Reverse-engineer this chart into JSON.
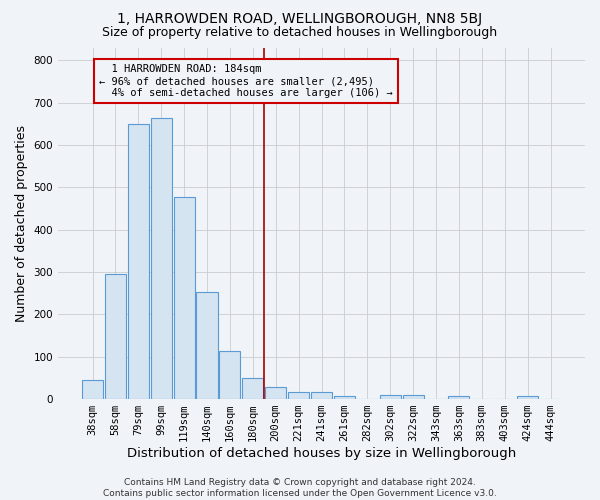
{
  "title": "1, HARROWDEN ROAD, WELLINGBOROUGH, NN8 5BJ",
  "subtitle": "Size of property relative to detached houses in Wellingborough",
  "xlabel": "Distribution of detached houses by size in Wellingborough",
  "ylabel": "Number of detached properties",
  "categories": [
    "38sqm",
    "58sqm",
    "79sqm",
    "99sqm",
    "119sqm",
    "140sqm",
    "160sqm",
    "180sqm",
    "200sqm",
    "221sqm",
    "241sqm",
    "261sqm",
    "282sqm",
    "302sqm",
    "322sqm",
    "343sqm",
    "363sqm",
    "383sqm",
    "403sqm",
    "424sqm",
    "444sqm"
  ],
  "values": [
    45,
    295,
    650,
    663,
    478,
    253,
    114,
    50,
    28,
    16,
    16,
    8,
    0,
    10,
    9,
    0,
    8,
    0,
    0,
    8,
    0
  ],
  "bar_color": "#d4e4f0",
  "bar_edge_color": "#5b9bd5",
  "vline_x": 7.5,
  "annotation_text": "  1 HARROWDEN ROAD: 184sqm\n← 96% of detached houses are smaller (2,495)\n  4% of semi-detached houses are larger (106) →",
  "vline_color": "#aa0000",
  "annotation_box_edge_color": "#cc0000",
  "ylim": [
    0,
    830
  ],
  "yticks": [
    0,
    100,
    200,
    300,
    400,
    500,
    600,
    700,
    800
  ],
  "footer": "Contains HM Land Registry data © Crown copyright and database right 2024.\nContains public sector information licensed under the Open Government Licence v3.0.",
  "bg_color": "#f0f4f8",
  "plot_bg_color": "#f0f4f8",
  "grid_color": "#cccccc",
  "title_fontsize": 10,
  "subtitle_fontsize": 9,
  "axis_label_fontsize": 9,
  "tick_fontsize": 7.5,
  "footer_fontsize": 6.5,
  "annotation_fontsize": 7.5
}
